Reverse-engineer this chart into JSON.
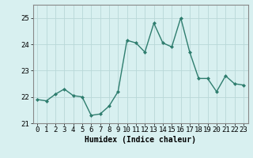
{
  "x": [
    0,
    1,
    2,
    3,
    4,
    5,
    6,
    7,
    8,
    9,
    10,
    11,
    12,
    13,
    14,
    15,
    16,
    17,
    18,
    19,
    20,
    21,
    22,
    23
  ],
  "y": [
    21.9,
    21.85,
    22.1,
    22.3,
    22.05,
    22.0,
    21.3,
    21.35,
    21.65,
    22.2,
    24.15,
    24.05,
    23.7,
    24.8,
    24.05,
    23.9,
    25.0,
    23.7,
    22.7,
    22.7,
    22.2,
    22.8,
    22.5,
    22.45
  ],
  "line_color": "#2e7d6e",
  "marker": "D",
  "marker_size": 2,
  "bg_color": "#d8f0f0",
  "grid_color": "#b8d8d8",
  "xlabel": "Humidex (Indice chaleur)",
  "ylim": [
    21.0,
    25.5
  ],
  "xlim": [
    -0.5,
    23.5
  ],
  "yticks": [
    21,
    22,
    23,
    24,
    25
  ],
  "xticks": [
    0,
    1,
    2,
    3,
    4,
    5,
    6,
    7,
    8,
    9,
    10,
    11,
    12,
    13,
    14,
    15,
    16,
    17,
    18,
    19,
    20,
    21,
    22,
    23
  ],
  "xlabel_fontsize": 7,
  "tick_fontsize": 6.5,
  "line_width": 1.0
}
